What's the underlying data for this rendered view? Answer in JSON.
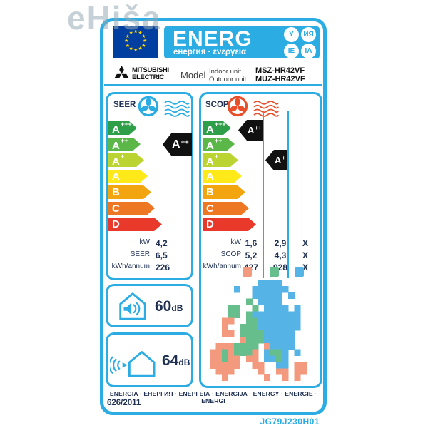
{
  "watermark": "eHiša",
  "colors": {
    "azure": "#2BACE2",
    "navy": "#1E2F52",
    "flag_blue": "#003E9F",
    "star_yellow": "#FFD500",
    "arrow_black": "#111111",
    "cooling_icon": "#2BACE2",
    "heating_icon": "#E8502C"
  },
  "header": {
    "energ": "ENERG",
    "subtitle": "енергия · ενεργεια",
    "circles": [
      "Y",
      "ИЯ",
      "IE",
      "ΙΑ"
    ]
  },
  "brand": {
    "line1": "MITSUBISHI",
    "line2": "ELECTRIC",
    "model_label": "Model",
    "indoor_label": "Indoor unit",
    "outdoor_label": "Outdoor unit",
    "indoor_model": "MSZ-HR42VF",
    "outdoor_model": "MUZ-HR42VF"
  },
  "energy_classes": [
    {
      "label": "A",
      "sup": "+++",
      "color": "#2E9E49"
    },
    {
      "label": "A",
      "sup": "++",
      "color": "#5BB747"
    },
    {
      "label": "A",
      "sup": "+",
      "color": "#BCD431"
    },
    {
      "label": "A",
      "sup": "",
      "color": "#FFE919"
    },
    {
      "label": "B",
      "sup": "",
      "color": "#F3A50F"
    },
    {
      "label": "C",
      "sup": "",
      "color": "#ED7723"
    },
    {
      "label": "D",
      "sup": "",
      "color": "#E8392B"
    }
  ],
  "cooling": {
    "title": "SEER",
    "rating": {
      "base": "A",
      "sup": "++"
    },
    "rows": [
      {
        "label": "kW",
        "value": "4,2"
      },
      {
        "label": "SEER",
        "value": "6,5"
      },
      {
        "label": "kWh/annum",
        "value": "226"
      }
    ]
  },
  "heating": {
    "title": "SCOP",
    "ratings": [
      {
        "base": "A",
        "sup": "+++"
      },
      {
        "base": "A",
        "sup": "+"
      }
    ],
    "rows": [
      {
        "label": "kW",
        "values": [
          "1,6",
          "2,9",
          "X"
        ]
      },
      {
        "label": "SCOP",
        "values": [
          "5,2",
          "4,3",
          "X"
        ]
      },
      {
        "label": "kWh/annum",
        "values": [
          "427",
          "928",
          "X"
        ]
      }
    ],
    "zones": [
      {
        "name": "warmer",
        "color": "#F2997E"
      },
      {
        "name": "average",
        "color": "#66BE8D"
      },
      {
        "name": "colder",
        "color": "#55B4E5"
      }
    ]
  },
  "noise": {
    "indoor": {
      "value": "60",
      "unit": "dB"
    },
    "outdoor": {
      "value": "64",
      "unit": "dB"
    }
  },
  "footer": {
    "languages": "ENERGIA · ЕНЕРГИЯ · ΕΝΕΡΓΕΙΑ · ENERGIJA · ENERGY · ENERGIE · ENERGI",
    "regulation": "626/2011",
    "doc_code": "JG79J230H01"
  },
  "map_pixels": [
    "........bbbb.....",
    "....b..bbbbbb....",
    ".......bbbbb.b...",
    "......g.bbbb.....",
    "...gg..g.bbbb.b..",
    "...gg.gbbbbbbbb..",
    "..oo..ggbbbbbbb..",
    "..o..gggbbbbbbb..",
    "..oo.ggggbbbbb...",
    ".....ogggbbbbb...",
    ".ooogggg.obbbb...",
    "oogogggo.bggb.b..",
    "oogoo.oo.bbgb....",
    "ooooo..oo..bb.oo.",
    ".ooo....o..oo.oo.",
    "..o......o..o.o.."
  ]
}
